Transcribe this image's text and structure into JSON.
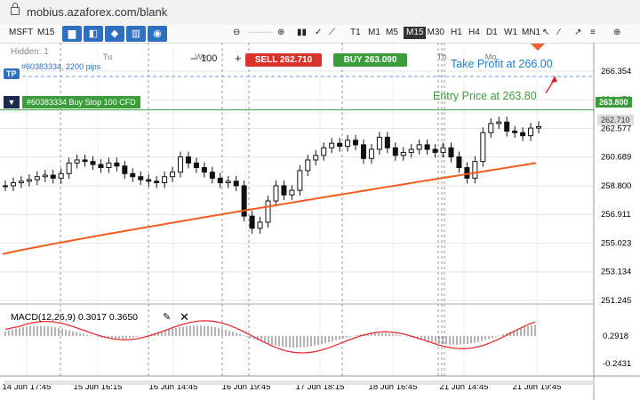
{
  "browser": {
    "url": "mobius.azaforex.com/blank"
  },
  "toolbar": {
    "symbol": "MSFT",
    "timeframe_small": "M15",
    "timeframes": [
      "T1",
      "M1",
      "M5",
      "M15",
      "M30",
      "H1",
      "H4",
      "D1",
      "W1",
      "MN1"
    ],
    "active_timeframe": "M15"
  },
  "trade": {
    "volume": "100",
    "sell_label": "SELL 262.710",
    "buy_label": "BUY 263.090",
    "sell_color": "#d9342b",
    "buy_color": "#3a9d3a"
  },
  "overlay": {
    "hidden_label": "Hidden: 1",
    "tp_badge": "TP",
    "tp_text": "#60383334, 2200 pips",
    "order_text": "#60383334 Buy Stop 100 CFD",
    "order_price": "263.800",
    "current_price": "262.710",
    "take_profit_note": "Take Profit at 266.00",
    "entry_note": "Entry Price at 263.80",
    "note_color_tp": "#1e7fd0",
    "note_color_entry": "#3a9d3a"
  },
  "macd": {
    "title": "MACD(12,26,9) 0.3017 0.3650",
    "y_ticks": [
      "0.2918",
      "-0.2431"
    ]
  },
  "chart_data": {
    "type": "candlestick",
    "y_ticks": [
      "266.354",
      "264.476",
      "262.577",
      "260.689",
      "258.800",
      "256.911",
      "255.023",
      "253.134",
      "251.245"
    ],
    "x_ticks": [
      "14 Jun 17:45",
      "15 Jun 16:15",
      "16 Jun 14:45",
      "16 Jun 19:45",
      "17 Jun 18:15",
      "18 Jun 16:45",
      "21 Jun 14:45",
      "21 Jun 19:45"
    ],
    "top_day_labels": [
      "Tu",
      "We",
      "Th",
      "Mo"
    ],
    "close_series": [
      258.8,
      259.0,
      259.1,
      259.2,
      259.4,
      259.5,
      259.3,
      259.6,
      260.3,
      260.5,
      260.4,
      260.2,
      260.0,
      260.3,
      260.1,
      259.6,
      259.4,
      259.2,
      259.1,
      259.0,
      259.4,
      259.7,
      260.7,
      260.3,
      260.0,
      259.7,
      259.3,
      259.0,
      259.1,
      258.8,
      256.8,
      256.0,
      256.4,
      257.8,
      258.8,
      258.2,
      258.5,
      259.8,
      260.5,
      260.8,
      261.3,
      261.6,
      261.4,
      261.8,
      261.5,
      260.6,
      261.2,
      262.0,
      261.3,
      260.8,
      261.0,
      261.2,
      261.5,
      261.2,
      261.0,
      261.3,
      260.7,
      260.0,
      259.3,
      260.4,
      262.3,
      262.9,
      263.0,
      262.4,
      262.3,
      262.1,
      262.6,
      262.7
    ],
    "moving_average": {
      "start": 254.3,
      "end": 260.3
    },
    "take_profit": 266.0,
    "entry_price": 263.8,
    "current_price": 262.71
  }
}
